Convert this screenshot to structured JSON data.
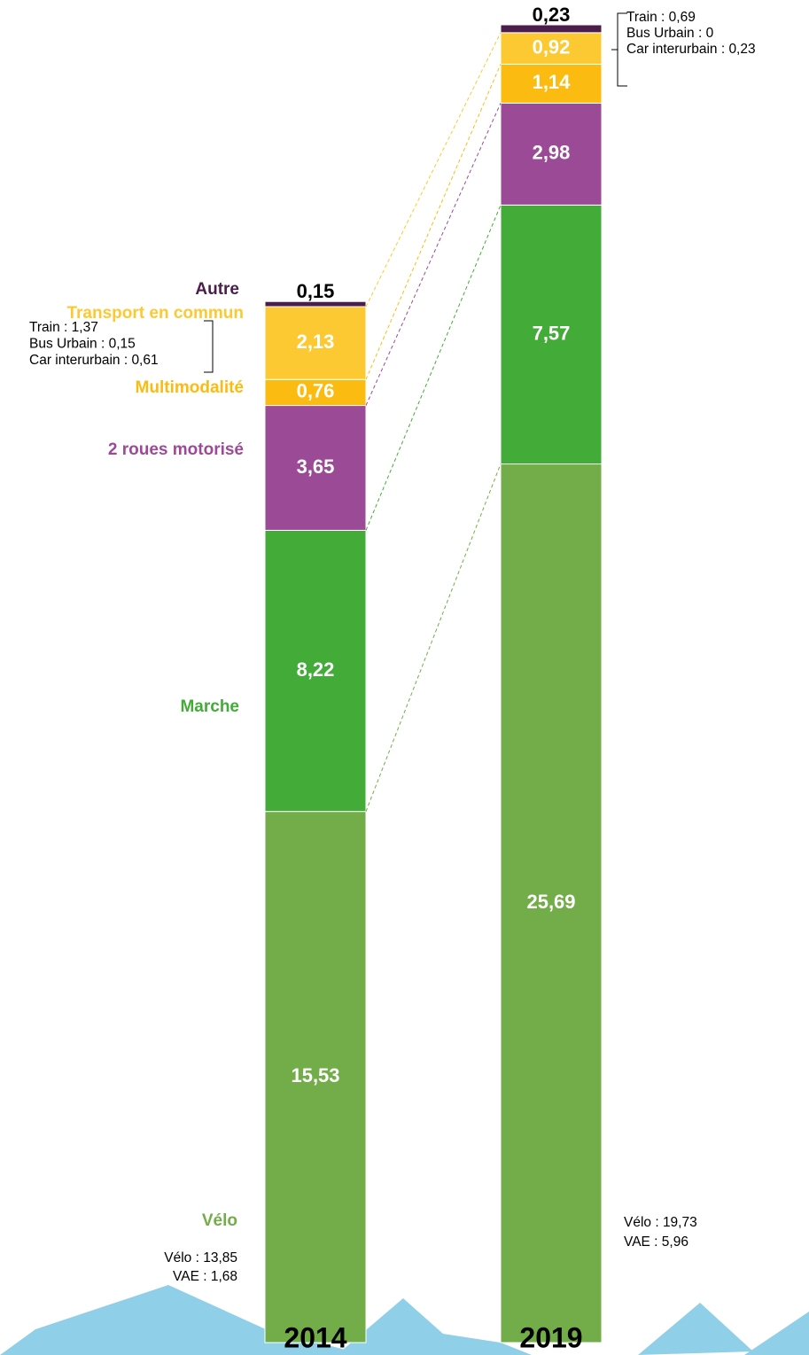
{
  "chart_data": {
    "type": "bar",
    "stacked": true,
    "categories": [
      "2014",
      "2019"
    ],
    "series": [
      {
        "name": "Vélo",
        "color": "#72ad4a",
        "values": [
          15.53,
          25.69
        ],
        "value_labels": [
          "15,53",
          "25,69"
        ]
      },
      {
        "name": "Marche",
        "color": "#43ab38",
        "values": [
          8.22,
          7.57
        ],
        "value_labels": [
          "8,22",
          "7,57"
        ]
      },
      {
        "name": "2 roues motorisé",
        "color": "#9b4a96",
        "values": [
          3.65,
          2.98
        ],
        "value_labels": [
          "3,65",
          "2,98"
        ]
      },
      {
        "name": "Multimodalité",
        "color": "#fbbb10",
        "values": [
          0.76,
          1.14
        ],
        "value_labels": [
          "0,76",
          "1,14"
        ]
      },
      {
        "name": "Transport en commun",
        "color": "#fdc932",
        "values": [
          2.13,
          0.92
        ],
        "value_labels": [
          "2,13",
          "0,92"
        ]
      },
      {
        "name": "Autre",
        "color": "#4a1d4a",
        "values": [
          0.15,
          0.23
        ],
        "value_labels": [
          "0,15",
          "0,23"
        ]
      }
    ],
    "annotations": [
      {
        "lines": [
          "Train : 1,37",
          "Bus Urbain : 0,15",
          "Car interurbain : 0,61"
        ]
      },
      {
        "lines": [
          "Vélo : 13,85",
          "VAE : 1,68"
        ]
      },
      {
        "lines": [
          "Train : 0,69",
          "Bus Urbain : 0",
          "Car interurbain : 0,23"
        ]
      },
      {
        "lines": [
          "Vélo : 19,73",
          "VAE : 5,96"
        ]
      }
    ]
  }
}
